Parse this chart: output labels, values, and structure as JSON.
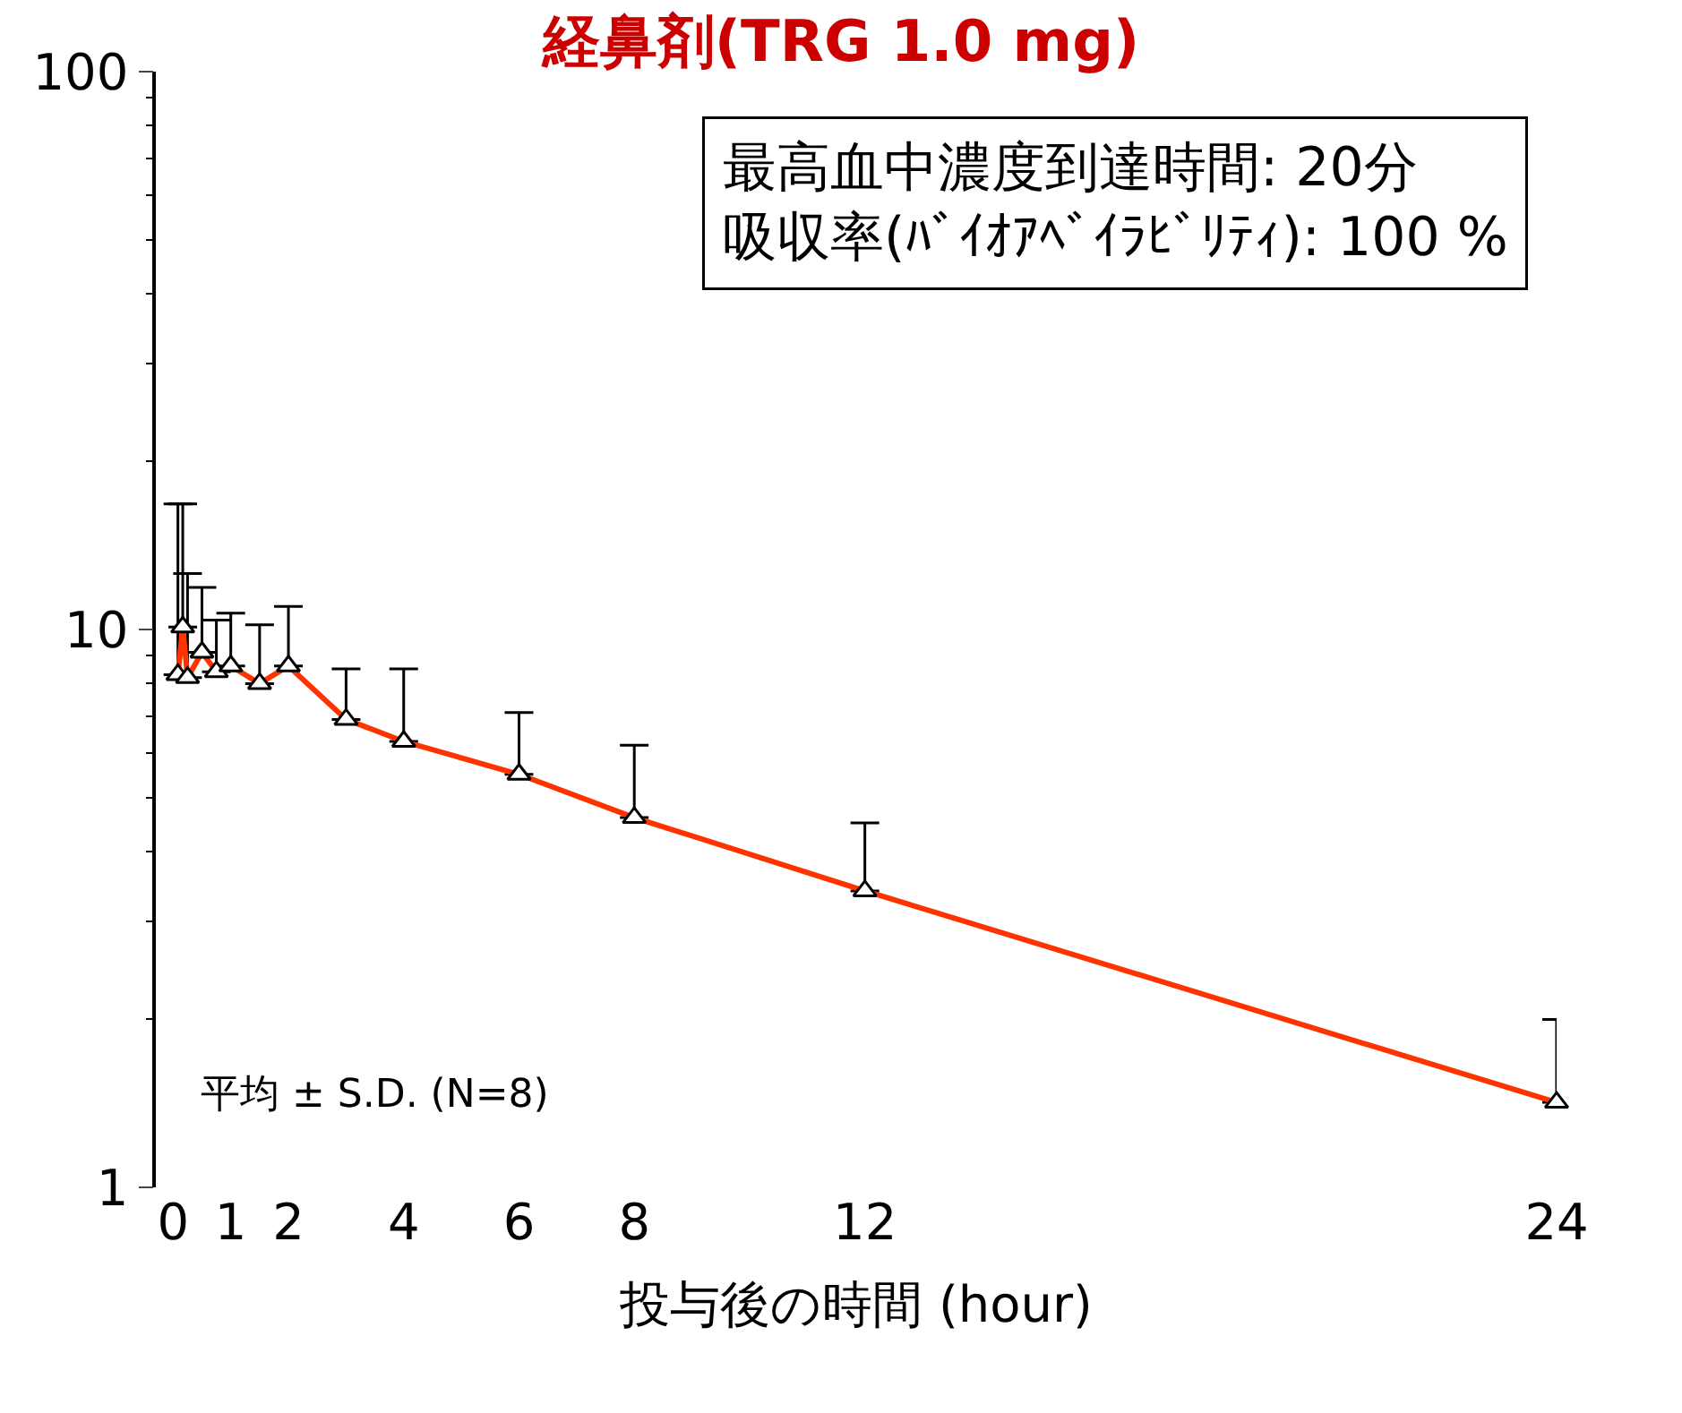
{
  "chart_data": {
    "type": "line",
    "title": "経鼻剤(TRG 1.0 mg)",
    "xlabel": "投与後の時間 (hour)",
    "x": [
      0.083,
      0.167,
      0.25,
      0.5,
      0.75,
      1,
      1.5,
      2,
      3,
      4,
      6,
      8,
      12,
      24
    ],
    "series": [
      {
        "color": "#ff3300",
        "values": [
          8.3,
          10.1,
          8.2,
          9.1,
          8.4,
          8.6,
          8.0,
          8.6,
          6.9,
          6.3,
          5.5,
          4.6,
          3.4,
          1.42
        ],
        "errors": [
          [
            8.3,
            16.8
          ],
          [
            10.1,
            16.8
          ],
          [
            8.2,
            12.6
          ],
          [
            9.1,
            11.9
          ],
          [
            8.4,
            10.4
          ],
          [
            8.6,
            10.7
          ],
          [
            8.0,
            10.2
          ],
          [
            8.6,
            11.0
          ],
          [
            6.9,
            8.5
          ],
          [
            6.3,
            8.5
          ],
          [
            5.5,
            7.1
          ],
          [
            4.6,
            6.2
          ],
          [
            3.4,
            4.5
          ],
          [
            1.42,
            2.0
          ]
        ]
      }
    ],
    "marker": "triangle",
    "log": "y",
    "xlim": [
      -0.3,
      24
    ],
    "xticks": [
      0,
      1,
      2,
      4,
      6,
      8,
      12,
      24
    ],
    "ylim": [
      1,
      100
    ],
    "yticks": [
      1,
      10,
      100
    ],
    "annotations": [
      "最高血中濃度到達時間: 20分",
      "吸収率(ﾊﾞｲｵｱﾍﾞｲﾗﾋﾞﾘﾃｨ): 100 %",
      "平均 ± S.D. (N=8)"
    ]
  }
}
